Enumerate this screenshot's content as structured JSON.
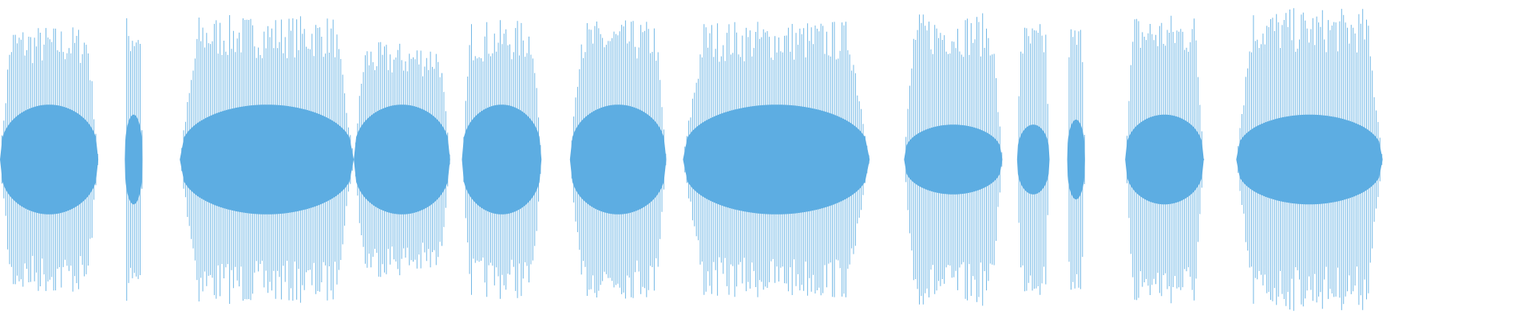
{
  "chart_data": {
    "type": "waveform",
    "color": "#5dade2",
    "xlim": [
      0,
      1560
    ],
    "ylim": [
      -160,
      160
    ],
    "segments": [
      {
        "start": 0,
        "end": 100,
        "amplitude": 135,
        "core": 55
      },
      {
        "start": 127,
        "end": 145,
        "amplitude": 145,
        "core": 45
      },
      {
        "start": 183,
        "end": 360,
        "amplitude": 145,
        "core": 55
      },
      {
        "start": 360,
        "end": 458,
        "amplitude": 118,
        "core": 55
      },
      {
        "start": 470,
        "end": 551,
        "amplitude": 140,
        "core": 55
      },
      {
        "start": 580,
        "end": 678,
        "amplitude": 140,
        "core": 55
      },
      {
        "start": 695,
        "end": 885,
        "amplitude": 140,
        "core": 55
      },
      {
        "start": 920,
        "end": 1020,
        "amplitude": 147,
        "core": 35
      },
      {
        "start": 1035,
        "end": 1068,
        "amplitude": 137,
        "core": 35
      },
      {
        "start": 1086,
        "end": 1104,
        "amplitude": 137,
        "core": 40
      },
      {
        "start": 1145,
        "end": 1225,
        "amplitude": 147,
        "core": 45
      },
      {
        "start": 1258,
        "end": 1407,
        "amplitude": 152,
        "core": 45
      }
    ]
  }
}
